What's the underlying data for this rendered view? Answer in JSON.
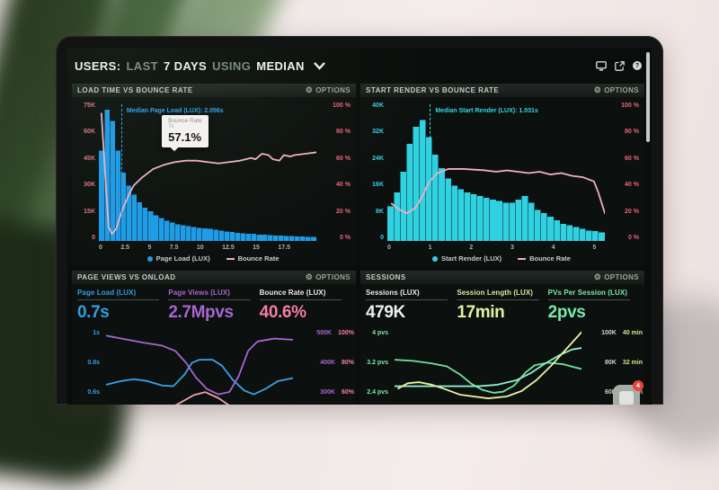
{
  "topbar": {
    "segments": {
      "users": "USERS:",
      "last": "LAST",
      "days": "7 DAYS",
      "using": "USING",
      "median": "MEDIAN"
    },
    "icons": [
      "display-icon",
      "share-icon",
      "help-icon"
    ],
    "help_glyph": "?"
  },
  "panels": {
    "load_time": {
      "title": "LOAD TIME VS BOUNCE RATE",
      "options_label": "OPTIONS",
      "median_annotation": "Median Page Load (LUX): 2.056s",
      "tooltip": {
        "title": "Bounce Rate",
        "subtitle": "7s",
        "value": "57.1%"
      },
      "legend": {
        "series": "Page Load (LUX)",
        "line": "Bounce Rate"
      }
    },
    "start_render": {
      "title": "START RENDER VS BOUNCE RATE",
      "options_label": "OPTIONS",
      "median_annotation": "Median Start Render (LUX): 1.031s",
      "legend": {
        "series": "Start Render (LUX)",
        "line": "Bounce Rate"
      }
    },
    "page_views": {
      "title": "PAGE VIEWS VS ONLOAD",
      "options_label": "OPTIONS",
      "metrics": [
        {
          "label": "Page Load (LUX)",
          "value": "0.7s",
          "color": "#2f9fe2",
          "value_color": "#2f9fe2"
        },
        {
          "label": "Page Views (LUX)",
          "value": "2.7Mpvs",
          "color": "#a765d2",
          "value_color": "#a765d2"
        },
        {
          "label": "Bounce Rate (LUX)",
          "value": "40.6%",
          "color": "#f0e6ea",
          "value_color": "#f27fa4"
        }
      ]
    },
    "sessions": {
      "title": "SESSIONS",
      "options_label": "OPTIONS",
      "metrics": [
        {
          "label": "Sessions (LUX)",
          "value": "479K",
          "color": "#e9ede9",
          "value_color": "#eef2ee"
        },
        {
          "label": "Session Length (LUX)",
          "value": "17min",
          "color": "#d6e79c",
          "value_color": "#e2f2a0"
        },
        {
          "label": "PVs Per Session (LUX)",
          "value": "2pvs",
          "color": "#7fe8a9",
          "value_color": "#74ecaa"
        }
      ]
    }
  },
  "widget": {
    "badge_count": "4"
  },
  "chart_data": [
    {
      "id": "chart-loadtime",
      "type": "histogram",
      "title": "LOAD TIME VS BOUNCE RATE",
      "x_unit": "seconds",
      "xlim": [
        0,
        20
      ],
      "ylim_left": [
        0,
        75000
      ],
      "ylim_right_pct": [
        0,
        100
      ],
      "x_ticks": [
        "0",
        "2.5",
        "5",
        "7.5",
        "10",
        "12.5",
        "15",
        "17.5"
      ],
      "y_left_ticks": [
        "75K",
        "60K",
        "45K",
        "30K",
        "15K",
        "0"
      ],
      "y_right_ticks": [
        "100 %",
        "80 %",
        "60 %",
        "40 %",
        "20 %",
        "0 %"
      ],
      "bar_color": "#1e9ce8",
      "line_color": "#f2b0c0",
      "median_color": "#35a3e8",
      "median_value_s": 2.056,
      "median_frac": 0.103,
      "median_line_id": "median-line-1",
      "median_label_id": "median-label-1",
      "ymax_thousands": 75,
      "bars_thousands": [
        49,
        71,
        65,
        49,
        37,
        30,
        25,
        21,
        18,
        16,
        14,
        12.5,
        11,
        10,
        9,
        8.5,
        8,
        7.5,
        7,
        6.8,
        6.5,
        6,
        5.5,
        5,
        4.8,
        4.5,
        4.2,
        4,
        3.8,
        3.5,
        3.3,
        3.1,
        3,
        2.8,
        2.7,
        2.6,
        2.5,
        2.4,
        2.3,
        2.2
      ],
      "bounce_line_pct": [
        [
          0.012,
          92
        ],
        [
          0.03,
          45
        ],
        [
          0.045,
          10
        ],
        [
          0.06,
          5
        ],
        [
          0.08,
          9
        ],
        [
          0.1,
          19
        ],
        [
          0.12,
          27
        ],
        [
          0.14,
          34
        ],
        [
          0.16,
          40
        ],
        [
          0.2,
          46
        ],
        [
          0.25,
          52
        ],
        [
          0.3,
          55
        ],
        [
          0.35,
          57
        ],
        [
          0.4,
          58
        ],
        [
          0.45,
          58
        ],
        [
          0.5,
          57
        ],
        [
          0.55,
          56
        ],
        [
          0.6,
          57
        ],
        [
          0.65,
          58
        ],
        [
          0.7,
          60
        ],
        [
          0.72,
          59
        ],
        [
          0.75,
          63
        ],
        [
          0.78,
          62
        ],
        [
          0.8,
          59
        ],
        [
          0.83,
          58
        ],
        [
          0.85,
          62
        ],
        [
          0.88,
          61
        ],
        [
          0.9,
          62
        ],
        [
          0.95,
          63
        ],
        [
          1,
          64
        ]
      ]
    },
    {
      "id": "chart-startrender",
      "type": "histogram",
      "title": "START RENDER VS BOUNCE RATE",
      "x_unit": "seconds",
      "xlim": [
        0,
        5.25
      ],
      "ylim_left": [
        0,
        40000
      ],
      "ylim_right_pct": [
        0,
        100
      ],
      "x_ticks": [
        "0",
        "1",
        "2",
        "3",
        "4",
        "5"
      ],
      "y_left_ticks": [
        "40K",
        "32K",
        "24K",
        "16K",
        "8K",
        "0"
      ],
      "y_right_ticks": [
        "100 %",
        "80 %",
        "60 %",
        "40 %",
        "20 %",
        "0 %"
      ],
      "bar_color": "#30d2e2",
      "line_color": "#f2b0c0",
      "median_color": "#34d6e6",
      "median_value_s": 1.031,
      "median_frac": 0.196,
      "median_line_id": "median-line-2",
      "median_label_id": "median-label-2",
      "ymax_thousands": 40,
      "bars_thousands": [
        10,
        14,
        20,
        28,
        33,
        35,
        30,
        25,
        21,
        18,
        16,
        15,
        14,
        13.5,
        13,
        12.5,
        12,
        11.5,
        11,
        11,
        12,
        13,
        11,
        9,
        8,
        7,
        6,
        5,
        4.5,
        4,
        3.5,
        3,
        2.8,
        2.5
      ],
      "bounce_line_pct": [
        [
          0.02,
          27
        ],
        [
          0.05,
          23
        ],
        [
          0.09,
          20
        ],
        [
          0.13,
          24
        ],
        [
          0.16,
          32
        ],
        [
          0.19,
          42
        ],
        [
          0.23,
          49
        ],
        [
          0.28,
          52
        ],
        [
          0.35,
          52
        ],
        [
          0.45,
          51
        ],
        [
          0.5,
          50
        ],
        [
          0.55,
          51
        ],
        [
          0.6,
          50
        ],
        [
          0.65,
          49
        ],
        [
          0.7,
          50
        ],
        [
          0.75,
          48
        ],
        [
          0.8,
          49
        ],
        [
          0.85,
          47
        ],
        [
          0.9,
          46
        ],
        [
          0.95,
          43
        ],
        [
          0.97,
          35
        ],
        [
          1,
          20
        ]
      ]
    },
    {
      "id": "chart-pageviews",
      "type": "lines",
      "title": "PAGE VIEWS VS ONLOAD",
      "y_left_ticks": [
        "1s",
        "0.8s",
        "0.6s"
      ],
      "y_right_ticks": [
        [
          {
            "t": "500K",
            "c": "#a765d2"
          },
          {
            "t": "100%",
            "c": "#f27fa4"
          }
        ],
        [
          {
            "t": "400K",
            "c": "#a765d2"
          },
          {
            "t": "80%",
            "c": "#f27fa4"
          }
        ],
        [
          {
            "t": "300K",
            "c": "#a765d2"
          },
          {
            "t": "60%",
            "c": "#f27fa4"
          }
        ]
      ],
      "series": [
        {
          "name": "Page Load (LUX)",
          "color": "#3aa0e8",
          "unit": "s",
          "lim": [
            0.495,
            1.021
          ],
          "points": [
            [
              0,
              0.63
            ],
            [
              0.08,
              0.655
            ],
            [
              0.15,
              0.668
            ],
            [
              0.22,
              0.655
            ],
            [
              0.3,
              0.625
            ],
            [
              0.36,
              0.62
            ],
            [
              0.42,
              0.7
            ],
            [
              0.46,
              0.78
            ],
            [
              0.5,
              0.8
            ],
            [
              0.57,
              0.8
            ],
            [
              0.62,
              0.76
            ],
            [
              0.68,
              0.66
            ],
            [
              0.74,
              0.59
            ],
            [
              0.79,
              0.565
            ],
            [
              0.85,
              0.6
            ],
            [
              0.92,
              0.655
            ],
            [
              1,
              0.675
            ]
          ]
        },
        {
          "name": "Page Views (LUX)",
          "color": "#a765d2",
          "unit": "K",
          "lim": [
            247,
            510.5
          ],
          "points": [
            [
              0,
              482
            ],
            [
              0.1,
              470
            ],
            [
              0.2,
              458
            ],
            [
              0.3,
              448
            ],
            [
              0.37,
              430
            ],
            [
              0.43,
              388
            ],
            [
              0.48,
              340
            ],
            [
              0.54,
              300
            ],
            [
              0.6,
              282
            ],
            [
              0.66,
              290
            ],
            [
              0.71,
              345
            ],
            [
              0.76,
              430
            ],
            [
              0.81,
              462
            ],
            [
              0.9,
              472
            ],
            [
              1,
              468
            ]
          ]
        },
        {
          "name": "Bounce Rate (LUX)",
          "color": "#efa0b5",
          "unit": "%",
          "lim": [
            49.5,
            102.1
          ],
          "points": [
            [
              0.25,
              40
            ],
            [
              0.33,
              46
            ],
            [
              0.4,
              51
            ],
            [
              0.47,
              56
            ],
            [
              0.53,
              58
            ],
            [
              0.6,
              54
            ],
            [
              0.67,
              48
            ],
            [
              0.75,
              42
            ],
            [
              0.85,
              36
            ],
            [
              1,
              33
            ]
          ]
        }
      ]
    },
    {
      "id": "chart-sessions",
      "type": "lines",
      "title": "SESSIONS",
      "y_left_ticks": [
        "4 pvs",
        "3.2 pvs",
        "2.4 pvs"
      ],
      "y_right_ticks": [
        [
          {
            "t": "100K",
            "c": "#cdd6cf"
          },
          {
            "t": "40 min",
            "c": "#cfe18f"
          }
        ],
        [
          {
            "t": "80K",
            "c": "#cdd6cf"
          },
          {
            "t": "32 min",
            "c": "#cfe18f"
          }
        ],
        [
          {
            "t": "60K",
            "c": "#cdd6cf"
          },
          {
            "t": "24 min",
            "c": "#cfe18f"
          }
        ]
      ],
      "series": [
        {
          "name": "PVs Per Session (LUX)",
          "color": "#6fe3a0",
          "unit": "pvs",
          "lim": [
            1.98,
            4.084
          ],
          "points": [
            [
              0,
              3.2
            ],
            [
              0.1,
              3.17
            ],
            [
              0.2,
              3.1
            ],
            [
              0.28,
              3.02
            ],
            [
              0.35,
              2.8
            ],
            [
              0.41,
              2.55
            ],
            [
              0.47,
              2.38
            ],
            [
              0.53,
              2.3
            ],
            [
              0.58,
              2.33
            ],
            [
              0.64,
              2.5
            ],
            [
              0.7,
              2.85
            ],
            [
              0.75,
              3.05
            ],
            [
              0.82,
              3.12
            ],
            [
              0.9,
              3.08
            ],
            [
              0.96,
              3.0
            ],
            [
              1,
              2.95
            ]
          ]
        },
        {
          "name": "Sessions (LUX)",
          "color": "#8feccb",
          "unit": "K",
          "lim": [
            49.5,
            102.1
          ],
          "points": [
            [
              0,
              62
            ],
            [
              0.3,
              62
            ],
            [
              0.45,
              62
            ],
            [
              0.55,
              63
            ],
            [
              0.65,
              66
            ],
            [
              0.73,
              71
            ],
            [
              0.8,
              77
            ],
            [
              0.88,
              83
            ],
            [
              0.95,
              87
            ],
            [
              1,
              88
            ]
          ]
        },
        {
          "name": "Session Length (LUX)",
          "color": "#e9f2a4",
          "unit": "min",
          "lim": [
            19.8,
            40.84
          ],
          "points": [
            [
              0.02,
              24.2
            ],
            [
              0.07,
              25.6
            ],
            [
              0.13,
              25.9
            ],
            [
              0.2,
              25.2
            ],
            [
              0.27,
              24
            ],
            [
              0.35,
              22.5
            ],
            [
              0.5,
              21.5
            ],
            [
              0.6,
              22
            ],
            [
              0.68,
              23.5
            ],
            [
              0.76,
              26.5
            ],
            [
              0.84,
              30.5
            ],
            [
              0.92,
              35
            ],
            [
              1,
              39.5
            ]
          ]
        }
      ]
    }
  ]
}
